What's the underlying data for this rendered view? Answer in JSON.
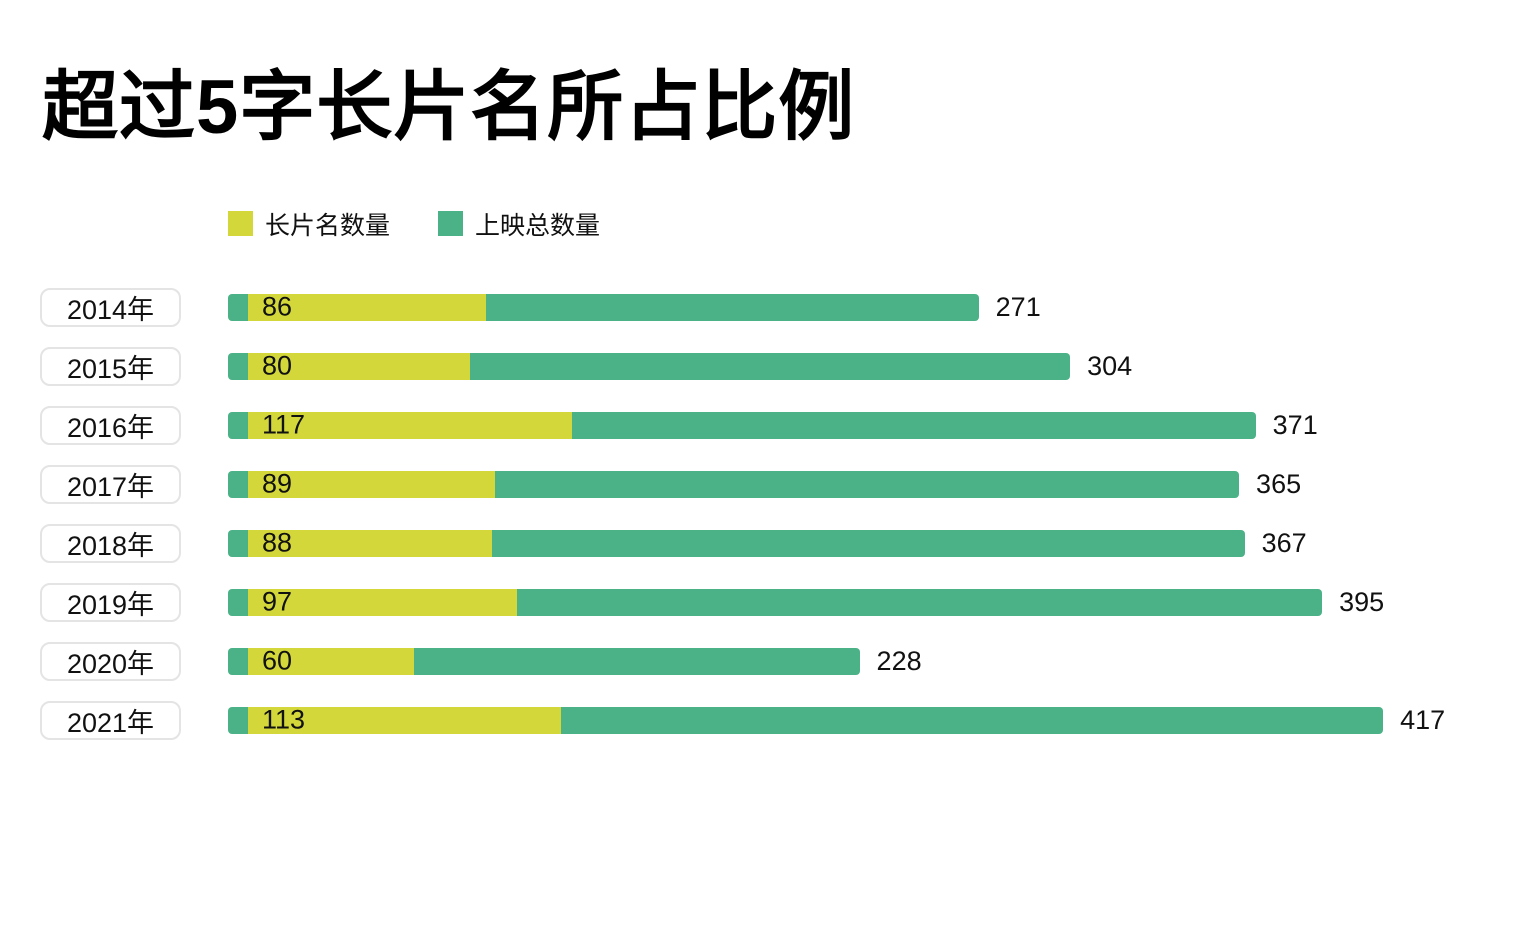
{
  "title": "超过5字长片名所占比例",
  "legend": {
    "items": [
      {
        "label": "长片名数量",
        "color": "#d3d739"
      },
      {
        "label": "上映总数量",
        "color": "#4bb287"
      }
    ]
  },
  "chart_data": {
    "type": "bar",
    "orientation": "horizontal",
    "title": "超过5字长片名所占比例",
    "categories": [
      "2014年",
      "2015年",
      "2016年",
      "2017年",
      "2018年",
      "2019年",
      "2020年",
      "2021年"
    ],
    "series": [
      {
        "name": "长片名数量",
        "color": "#d3d739",
        "values": [
          86,
          80,
          117,
          89,
          88,
          97,
          60,
          113
        ]
      },
      {
        "name": "上映总数量",
        "color": "#4bb287",
        "values": [
          271,
          304,
          371,
          365,
          367,
          395,
          228,
          417
        ]
      }
    ],
    "value_labels_inside_bar": [
      86,
      80,
      117,
      89,
      88,
      97,
      60,
      113
    ],
    "total_labels_right_of_bar": [
      271,
      304,
      371,
      365,
      367,
      395,
      228,
      417
    ],
    "xlim": [
      0,
      440
    ],
    "grid": false,
    "legend_position": "top-left"
  }
}
